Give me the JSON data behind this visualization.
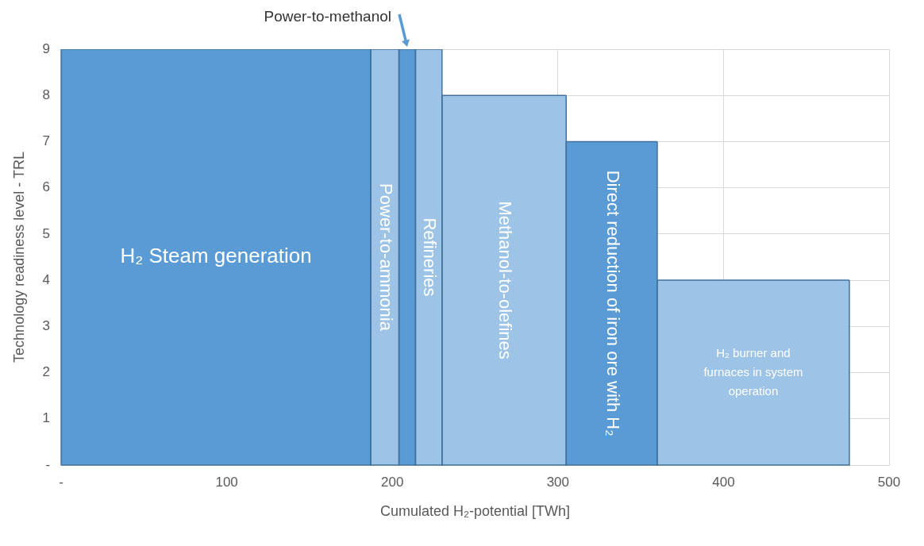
{
  "chart_data": {
    "type": "area",
    "xlabel": "Cumulated H₂-potential [TWh]",
    "ylabel": "Technology readiness level - TRL",
    "xlim": [
      0,
      500
    ],
    "xticks": [
      {
        "value": 0,
        "label": "-"
      },
      100,
      200,
      300,
      400,
      500
    ],
    "ylim": [
      0,
      9
    ],
    "yticks": [
      {
        "value": 0,
        "label": "-"
      },
      1,
      2,
      3,
      4,
      5,
      6,
      7,
      8,
      9
    ],
    "grid": true,
    "legend": false,
    "marker": "none",
    "series": [
      {
        "name": "H₂ Steam generation",
        "color": "#5b9bd5",
        "x": [
          0,
          187
        ],
        "values": [
          9,
          9
        ]
      },
      {
        "name": "Power-to-ammonia",
        "color": "#9dc3e6",
        "x": [
          187,
          204
        ],
        "values": [
          9,
          9
        ]
      },
      {
        "name": "Power-to-methanol",
        "color": "#5b9bd5",
        "x": [
          204,
          214
        ],
        "values": [
          9,
          9
        ]
      },
      {
        "name": "Refineries",
        "color": "#9dc3e6",
        "x": [
          214,
          230
        ],
        "values": [
          9,
          9
        ]
      },
      {
        "name": "Methanol-to-olefines",
        "color": "#9dc3e6",
        "x": [
          230,
          305
        ],
        "values": [
          8,
          8
        ]
      },
      {
        "name": "Direct reduction of iron ore with H₂",
        "color": "#5b9bd5",
        "x": [
          305,
          360
        ],
        "values": [
          7,
          7
        ]
      },
      {
        "name": "H₂ burner and furnaces in system operation",
        "color": "#9dc3e6",
        "x": [
          360,
          476
        ],
        "values": [
          4,
          4
        ]
      }
    ]
  }
}
